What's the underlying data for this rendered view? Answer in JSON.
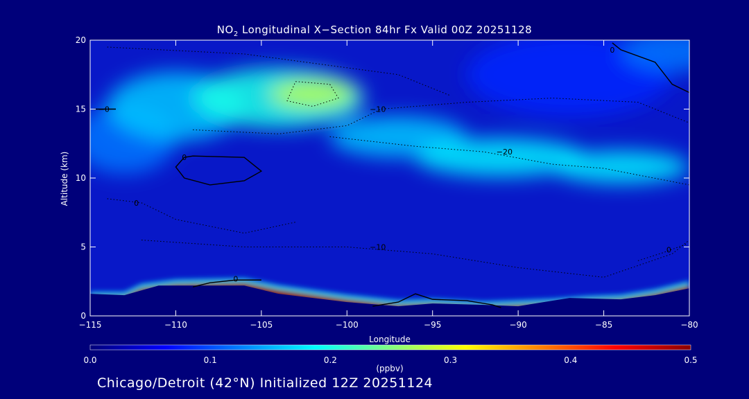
{
  "title": {
    "species": "NO",
    "subscript": "2",
    "rest": " Longitudinal X−Section 84hr  Fx Valid 00Z 20251128"
  },
  "footer": "Chicago/Detroit (42°N) Initialized 12Z 20251124",
  "chart_data": {
    "type": "heatmap",
    "xlabel": "Longitude",
    "ylabel": "Altitude (km)",
    "xlim": [
      -115,
      -80
    ],
    "ylim": [
      0,
      20
    ],
    "xticks": [
      -115,
      -110,
      -105,
      -100,
      -95,
      -90,
      -85,
      -80
    ],
    "xtick_labels": [
      "−115",
      "−110",
      "−105",
      "−100",
      "−95",
      "−90",
      "−85",
      "−80"
    ],
    "yticks": [
      0,
      5,
      10,
      15,
      20
    ],
    "ytick_labels": [
      "0",
      "5",
      "10",
      "15",
      "20"
    ],
    "colorbar": {
      "label": "(ppbv)",
      "range": [
        0.0,
        0.5
      ],
      "ticks": [
        0.0,
        0.1,
        0.2,
        0.3,
        0.4,
        0.5
      ],
      "tick_labels": [
        "0.0",
        "0.1",
        "0.2",
        "0.3",
        "0.4",
        "0.5"
      ],
      "colors": [
        "#00007a",
        "#0000ff",
        "#0080ff",
        "#00ffff",
        "#80ff80",
        "#ffff00",
        "#ff8000",
        "#ff0000",
        "#8b0000"
      ]
    },
    "upper_layer": [
      {
        "lon": -113,
        "alt": 12.8,
        "val": 0.12,
        "rx": 3,
        "ry": 2.5
      },
      {
        "lon": -110,
        "alt": 15.2,
        "val": 0.16,
        "rx": 4,
        "ry": 2.5
      },
      {
        "lon": -104,
        "alt": 15.8,
        "val": 0.2,
        "rx": 5,
        "ry": 2.2
      },
      {
        "lon": -102,
        "alt": 16.1,
        "val": 0.28,
        "rx": 2.5,
        "ry": 1.0
      },
      {
        "lon": -97,
        "alt": 13.0,
        "val": 0.16,
        "rx": 4,
        "ry": 1.5
      },
      {
        "lon": -91,
        "alt": 11.5,
        "val": 0.18,
        "rx": 5,
        "ry": 1.4
      },
      {
        "lon": -84,
        "alt": 10.8,
        "val": 0.18,
        "rx": 4,
        "ry": 1.2
      },
      {
        "lon": -87,
        "alt": 17.5,
        "val": 0.08,
        "rx": 6,
        "ry": 3
      },
      {
        "lon": -81,
        "alt": 19.2,
        "val": 0.12,
        "rx": 3,
        "ry": 1.5
      }
    ],
    "surface_layer": {
      "top_km": [
        [
          -115,
          1.7
        ],
        [
          -113,
          1.7
        ],
        [
          -112,
          2.3
        ],
        [
          -110,
          2.6
        ],
        [
          -106,
          2.7
        ],
        [
          -104,
          2.2
        ],
        [
          -100,
          1.5
        ],
        [
          -97,
          1.1
        ],
        [
          -95,
          1.2
        ],
        [
          -92,
          1.0
        ],
        [
          -88,
          1.2
        ],
        [
          -86,
          1.4
        ],
        [
          -84,
          1.5
        ],
        [
          -82,
          1.9
        ],
        [
          -80,
          2.5
        ]
      ],
      "val": 0.5
    },
    "terrain_km": [
      [
        -115,
        1.6
      ],
      [
        -113,
        1.5
      ],
      [
        -111,
        2.2
      ],
      [
        -106,
        2.2
      ],
      [
        -104,
        1.6
      ],
      [
        -100,
        1.0
      ],
      [
        -97,
        0.7
      ],
      [
        -95,
        0.9
      ],
      [
        -92,
        0.8
      ],
      [
        -90,
        0.7
      ],
      [
        -87,
        1.3
      ],
      [
        -84,
        1.2
      ],
      [
        -82,
        1.5
      ],
      [
        -80,
        2.0
      ]
    ],
    "contours": [
      {
        "label": "0",
        "style": "solid",
        "label_at": [
          -109.5,
          11.5
        ],
        "points": [
          [
            -109.5,
            11.5
          ],
          [
            -109,
            11.6
          ],
          [
            -106,
            11.5
          ],
          [
            -105,
            10.5
          ],
          [
            -106,
            9.8
          ],
          [
            -108,
            9.5
          ],
          [
            -109.5,
            10.0
          ],
          [
            -110,
            10.8
          ],
          [
            -109.5,
            11.5
          ]
        ]
      },
      {
        "label": "0",
        "style": "solid",
        "label_at": [
          -84.5,
          19.3
        ],
        "points": [
          [
            -84.5,
            19.8
          ],
          [
            -84,
            19.3
          ],
          [
            -82,
            18.4
          ],
          [
            -81,
            16.8
          ],
          [
            -80,
            16.2
          ]
        ]
      },
      {
        "label": "0",
        "style": "solid",
        "label_at": [
          -106.5,
          2.7
        ],
        "points": [
          [
            -109,
            2.1
          ],
          [
            -108,
            2.4
          ],
          [
            -106.5,
            2.6
          ],
          [
            -105,
            2.6
          ]
        ]
      },
      {
        "label": "",
        "style": "solid",
        "label_at": null,
        "points": [
          [
            -98.5,
            0.7
          ],
          [
            -97,
            1.0
          ],
          [
            -96,
            1.6
          ],
          [
            -95,
            1.2
          ],
          [
            -93,
            1.1
          ],
          [
            -91.5,
            0.8
          ],
          [
            -91,
            0.6
          ]
        ]
      },
      {
        "label": "−10",
        "style": "dotted",
        "label_at": [
          -98.2,
          15.0
        ],
        "points": [
          [
            -109,
            13.5
          ],
          [
            -104,
            13.2
          ],
          [
            -100,
            13.8
          ],
          [
            -98,
            15.0
          ],
          [
            -93,
            15.5
          ],
          [
            -88,
            15.8
          ],
          [
            -83,
            15.5
          ],
          [
            -80,
            14.0
          ]
        ]
      },
      {
        "label": "−20",
        "style": "dotted",
        "label_at": [
          -90.8,
          11.9
        ],
        "points": [
          [
            -101,
            13.0
          ],
          [
            -96,
            12.3
          ],
          [
            -92,
            11.9
          ],
          [
            -88,
            11.0
          ],
          [
            -85,
            10.7
          ],
          [
            -80,
            9.5
          ]
        ]
      },
      {
        "label": "−10",
        "style": "dotted",
        "label_at": [
          -98.2,
          5.0
        ],
        "points": [
          [
            -112,
            5.5
          ],
          [
            -106,
            5.0
          ],
          [
            -100,
            5.0
          ],
          [
            -95,
            4.5
          ],
          [
            -90,
            3.5
          ],
          [
            -85,
            2.8
          ],
          [
            -81,
            4.5
          ],
          [
            -80,
            5.5
          ]
        ]
      },
      {
        "label": "0",
        "style": "dotted",
        "label_at": [
          -112.3,
          8.2
        ],
        "points": [
          [
            -114,
            8.5
          ],
          [
            -112,
            8.2
          ],
          [
            -110,
            7.0
          ],
          [
            -106,
            6.0
          ],
          [
            -103,
            6.8
          ]
        ]
      },
      {
        "label": "",
        "style": "dotted",
        "label_at": null,
        "points": [
          [
            -114,
            19.5
          ],
          [
            -106,
            19.0
          ],
          [
            -100,
            18.0
          ],
          [
            -97,
            17.5
          ],
          [
            -94,
            16.0
          ]
        ]
      },
      {
        "label": "",
        "style": "dotted",
        "label_at": null,
        "points": [
          [
            -103,
            17.0
          ],
          [
            -101,
            16.8
          ],
          [
            -100.5,
            15.8
          ],
          [
            -102,
            15.2
          ],
          [
            -103.5,
            15.6
          ],
          [
            -103,
            17.0
          ]
        ]
      },
      {
        "label": "−0",
        "style": "solid",
        "label_at": [
          -114.2,
          15.0
        ],
        "points": [
          [
            -114.8,
            15.0
          ],
          [
            -113.5,
            15.0
          ]
        ]
      },
      {
        "label": "0",
        "style": "dotted",
        "label_at": [
          -81.2,
          4.8
        ],
        "points": [
          [
            -83,
            4.0
          ],
          [
            -81.5,
            4.6
          ],
          [
            -80.2,
            5.2
          ]
        ]
      }
    ]
  }
}
